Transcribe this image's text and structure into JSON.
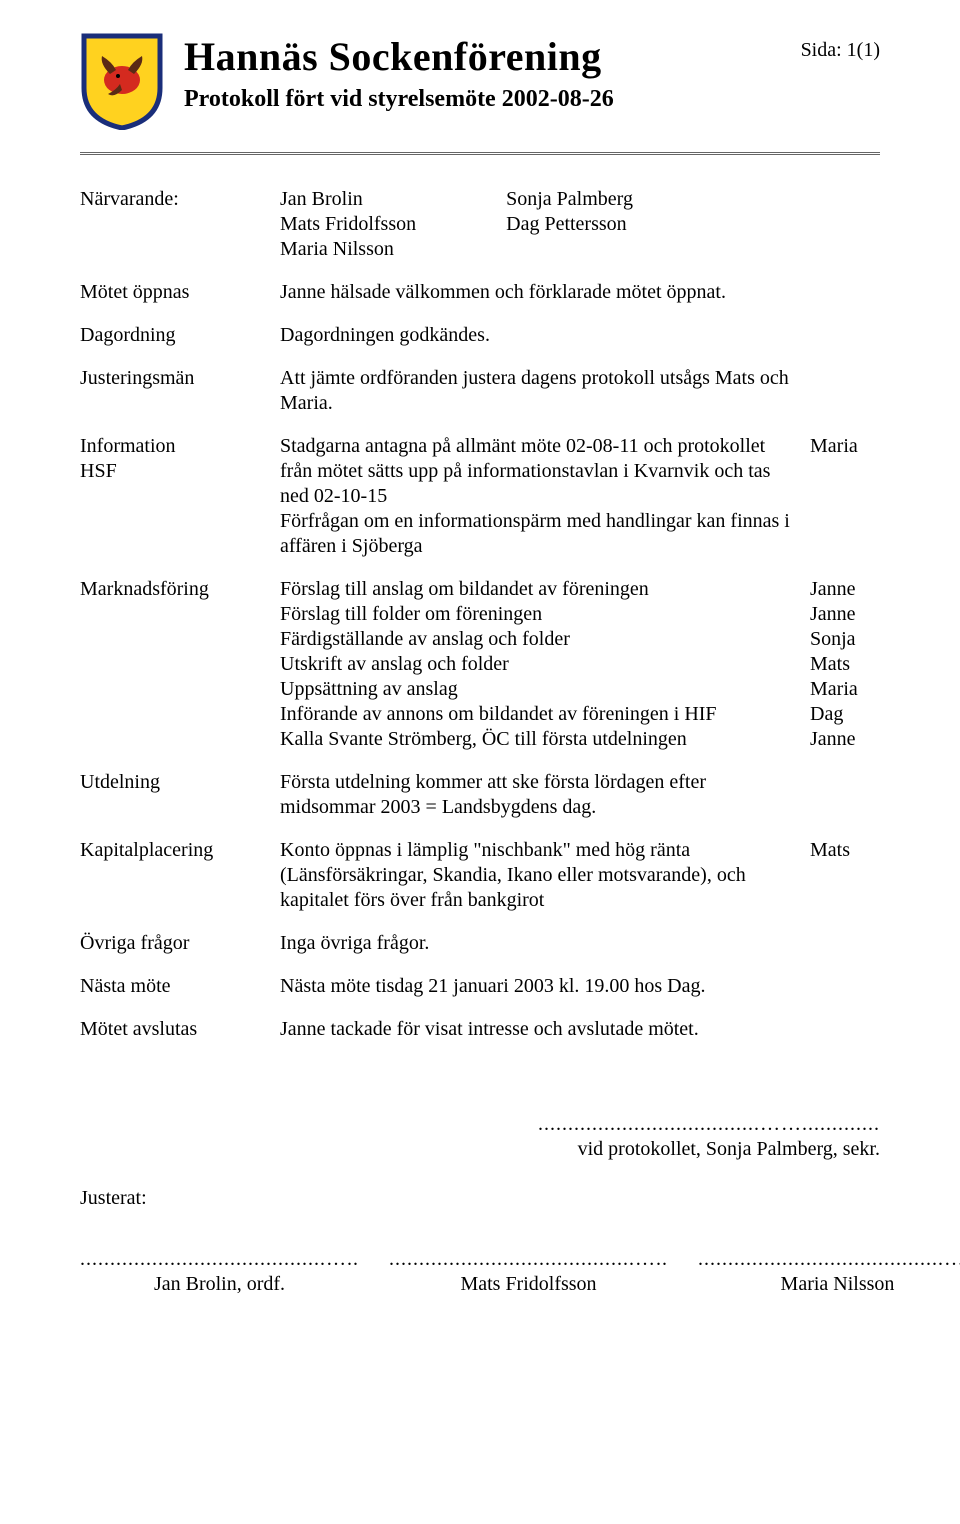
{
  "header": {
    "title": "Hannäs Sockenförening",
    "subtitle": "Protokoll fört vid styrelsemöte 2002-08-26",
    "page": "Sida: 1(1)"
  },
  "shield": {
    "border_color": "#1a2e7a",
    "fill_color": "#ffd21f",
    "bird_color": "#d42a1f",
    "bird_dark": "#5a2a15"
  },
  "attendees": {
    "label": "Närvarande:",
    "col1": [
      "Jan Brolin",
      "Mats Fridolfsson",
      "Maria Nilsson"
    ],
    "col2": [
      "Sonja Palmberg",
      "Dag Pettersson"
    ]
  },
  "items": [
    {
      "label": "Mötet öppnas",
      "text": "Janne hälsade välkommen och förklarade mötet öppnat.",
      "resp": ""
    },
    {
      "label": "Dagordning",
      "text": "Dagordningen godkändes.",
      "resp": ""
    },
    {
      "label": "Justeringsmän",
      "text": "Att jämte ordföranden justera dagens protokoll utsågs Mats och Maria.",
      "resp": ""
    }
  ],
  "info": {
    "label1": "Information",
    "label2": "HSF",
    "text": "Stadgarna antagna på allmänt möte 02-08-11 och protokollet från mötet sätts upp på informationstavlan i Kvarnvik och tas ned 02-10-15\nFörfrågan om en informationspärm med handlingar kan finnas i affären i Sjöberga",
    "resp": "Maria"
  },
  "marketing": {
    "label": "Marknadsföring",
    "lines": [
      {
        "t": "Förslag till anslag om bildandet av föreningen",
        "r": "Janne"
      },
      {
        "t": "Förslag till folder om föreningen",
        "r": "Janne"
      },
      {
        "t": "Färdigställande av anslag och folder",
        "r": "Sonja"
      },
      {
        "t": "Utskrift av anslag och folder",
        "r": "Mats"
      },
      {
        "t": "Uppsättning av anslag",
        "r": "Maria"
      },
      {
        "t": "Införande av annons om bildandet av föreningen i HIF",
        "r": "Dag"
      },
      {
        "t": "Kalla Svante Strömberg, ÖC till första utdelningen",
        "r": "Janne"
      }
    ]
  },
  "post_items": [
    {
      "label": "Utdelning",
      "text": "Första utdelning kommer att ske första lördagen efter midsommar 2003 = Landsbygdens dag.",
      "resp": ""
    },
    {
      "label": "Kapitalplacering",
      "text": "Konto öppnas i lämplig \"nischbank\" med hög ränta (Länsförsäkringar, Skandia, Ikano eller motsvarande), och kapitalet förs över från bankgirot",
      "resp": "Mats"
    },
    {
      "label": "Övriga frågor",
      "text": "Inga övriga frågor.",
      "resp": ""
    },
    {
      "label": "Nästa möte",
      "text": "Nästa möte tisdag 21 januari 2003 kl. 19.00 hos Dag.",
      "resp": ""
    },
    {
      "label": "Mötet avslutas",
      "text": "Janne tackade för visat intresse och avslutade mötet.",
      "resp": ""
    }
  ],
  "signatures": {
    "dots_small": ".....................................…….............",
    "secretary": "vid protokollet, Sonja Palmberg, sekr.",
    "justerat": "Justerat:",
    "dots_wide": ".........................................…..",
    "names": [
      "Jan Brolin, ordf.",
      "Mats Fridolfsson",
      "Maria Nilsson"
    ]
  }
}
